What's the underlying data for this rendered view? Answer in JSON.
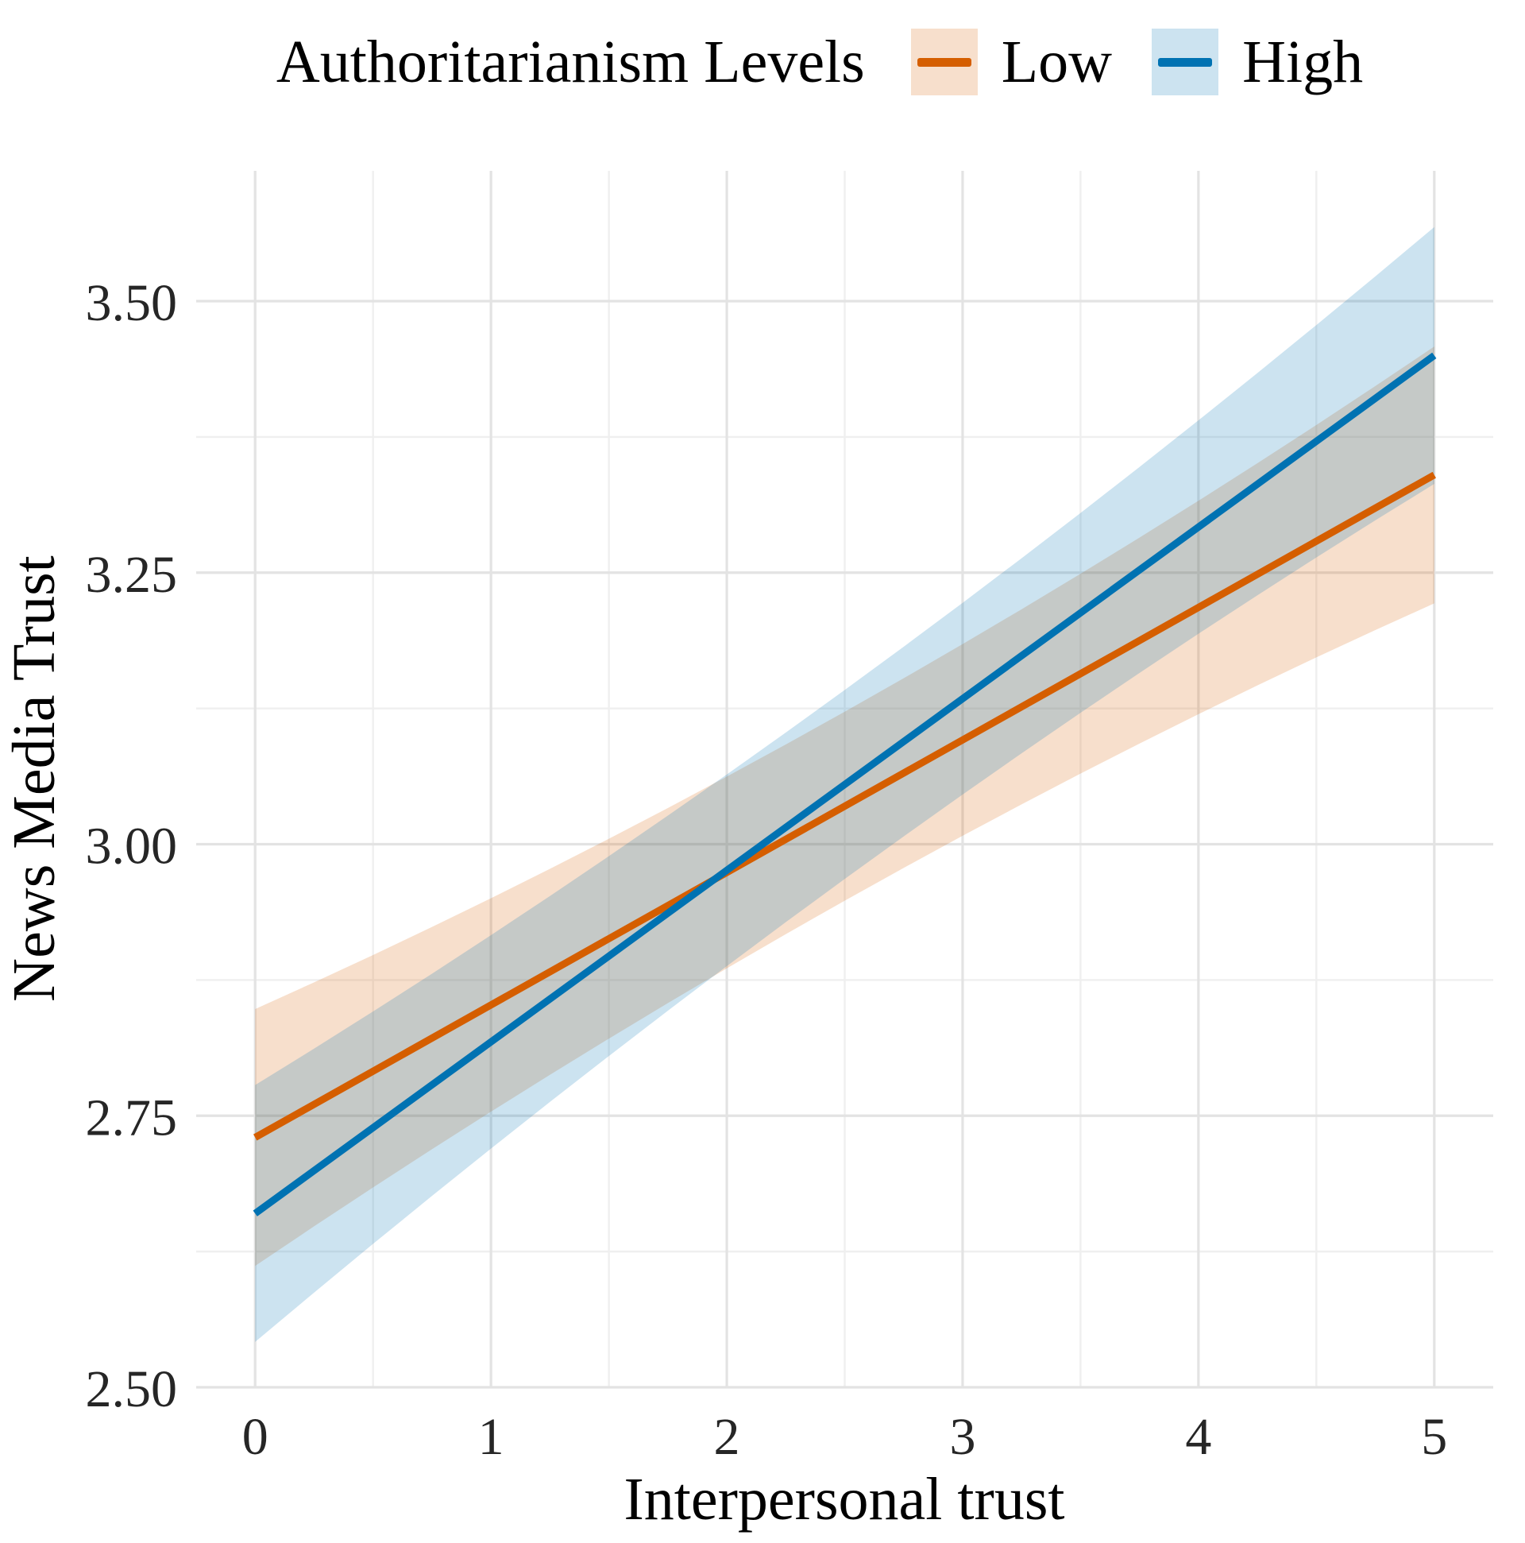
{
  "chart_data": {
    "type": "line",
    "legend_title": "Authoritarianism Levels",
    "x": {
      "label": "Interpersonal trust",
      "ticks": [
        "0",
        "1",
        "2",
        "3",
        "4",
        "5"
      ],
      "tick_values": [
        0,
        1,
        2,
        3,
        4,
        5
      ],
      "minor_gridlines": [
        0.5,
        1.5,
        2.5,
        3.5,
        4.5
      ],
      "range": [
        -0.25,
        5.25
      ]
    },
    "y": {
      "label": "News Media Trust",
      "ticks": [
        "2.50",
        "2.75",
        "3.00",
        "3.25",
        "3.50"
      ],
      "tick_values": [
        2.5,
        2.75,
        3.0,
        3.25,
        3.5
      ],
      "minor_gridlines": [
        2.625,
        2.875,
        3.125,
        3.375
      ],
      "range": [
        2.5,
        3.62
      ]
    },
    "series": [
      {
        "name": "Low",
        "color": "#D55E00",
        "x": [
          0,
          5
        ],
        "y": [
          2.73,
          3.34
        ],
        "ci_lower": [
          2.62,
          3.22
        ],
        "ci_upper": [
          2.85,
          3.45
        ]
      },
      {
        "name": "High",
        "color": "#0072B2",
        "x": [
          0,
          5
        ],
        "y": [
          2.66,
          3.45
        ],
        "ci_lower": [
          2.55,
          3.34
        ],
        "ci_upper": [
          2.77,
          3.57
        ]
      }
    ],
    "ci_band": {
      "mid_halfwidth": 0.087,
      "curvature": 0.005
    },
    "style": {
      "background": "#FFFFFF",
      "ribbon_opacity": 0.2,
      "grid_major_color": "#E3E3E3",
      "grid_minor_color": "#EFEFEF",
      "grid_major_width": 3.2,
      "grid_minor_width": 2.4,
      "line_width": 9,
      "text_color": "#000000",
      "tick_text_color": "#262626",
      "legend_position": "top"
    }
  }
}
